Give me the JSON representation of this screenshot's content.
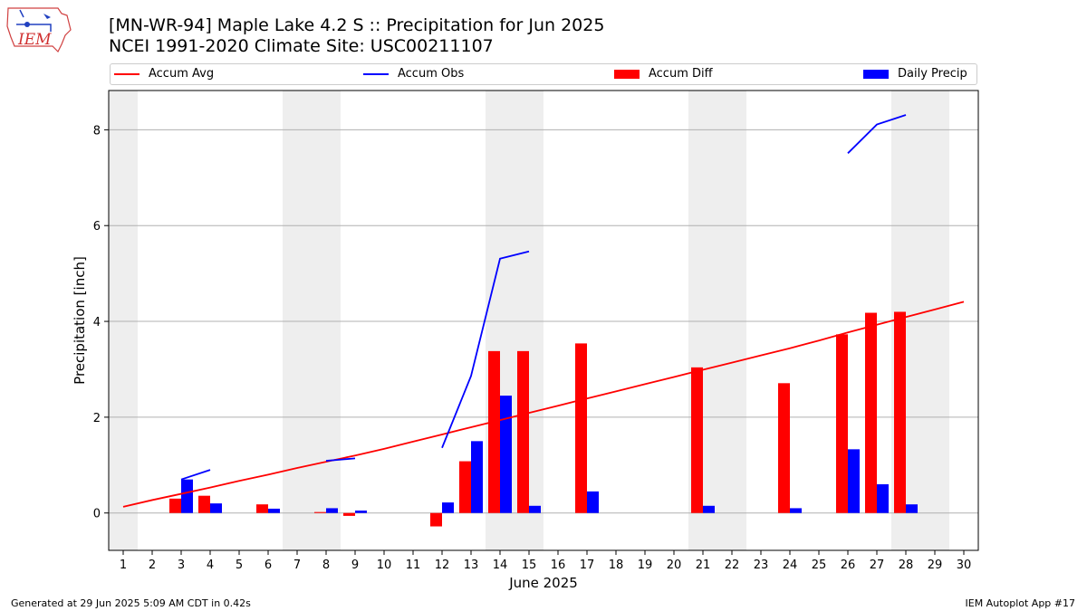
{
  "header": {
    "title": "[MN-WR-94] Maple Lake 4.2 S :: Precipitation for Jun 2025",
    "subtitle": "NCEI 1991-2020 Climate Site: USC00211107",
    "logo_text": "IEM"
  },
  "footer": {
    "generated": "Generated at 29 Jun 2025 5:09 AM CDT in 0.42s",
    "app": "IEM Autoplot App #17"
  },
  "legend": {
    "items": [
      {
        "label": "Accum Avg",
        "kind": "line",
        "color": "#ff0000"
      },
      {
        "label": "Accum Obs",
        "kind": "line",
        "color": "#0000ff"
      },
      {
        "label": "Accum Diff",
        "kind": "bar",
        "color": "#ff0000"
      },
      {
        "label": "Daily Precip",
        "kind": "bar",
        "color": "#0000ff"
      }
    ]
  },
  "chart_data": {
    "type": "bar",
    "xlabel": "June 2025",
    "ylabel": "Precipitation [inch]",
    "x": [
      1,
      2,
      3,
      4,
      5,
      6,
      7,
      8,
      9,
      10,
      11,
      12,
      13,
      14,
      15,
      16,
      17,
      18,
      19,
      20,
      21,
      22,
      23,
      24,
      25,
      26,
      27,
      28,
      29,
      30
    ],
    "xlim": [
      0.5,
      30.5
    ],
    "ylim": [
      -0.78,
      8.82
    ],
    "yticks": [
      0,
      2,
      4,
      6,
      8
    ],
    "grid": "y",
    "legend_position": "top",
    "weekend_shading": [
      [
        0.5,
        1.5
      ],
      [
        6.5,
        8.5
      ],
      [
        13.5,
        15.5
      ],
      [
        20.5,
        22.5
      ],
      [
        27.5,
        29.5
      ]
    ],
    "accum_avg": {
      "name": "Accum Avg",
      "color": "#ff0000",
      "x": [
        1,
        2,
        3,
        4,
        5,
        6,
        7,
        8,
        9,
        10,
        11,
        12,
        13,
        14,
        15,
        16,
        17,
        18,
        19,
        20,
        21,
        22,
        23,
        24,
        25,
        26,
        27,
        28,
        29,
        30
      ],
      "y": [
        0.13,
        0.27,
        0.4,
        0.53,
        0.67,
        0.8,
        0.94,
        1.07,
        1.2,
        1.34,
        1.49,
        1.64,
        1.79,
        1.94,
        2.09,
        2.24,
        2.39,
        2.54,
        2.69,
        2.84,
        2.99,
        3.14,
        3.29,
        3.44,
        3.6,
        3.77,
        3.93,
        4.09,
        4.25,
        4.41
      ]
    },
    "accum_obs": {
      "name": "Accum Obs",
      "color": "#0000ff",
      "segments": [
        {
          "x": [
            3,
            4
          ],
          "y": [
            0.7,
            0.9
          ]
        },
        {
          "x": [
            8,
            9
          ],
          "y": [
            1.09,
            1.14
          ]
        },
        {
          "x": [
            12,
            13,
            14,
            15
          ],
          "y": [
            1.36,
            2.86,
            5.31,
            5.46
          ]
        },
        {
          "x": [
            26,
            27,
            28
          ],
          "y": [
            7.51,
            8.11,
            8.31
          ]
        }
      ]
    },
    "accum_diff": {
      "name": "Accum Diff",
      "color": "#ff0000",
      "x": [
        3,
        4,
        6,
        8,
        9,
        12,
        13,
        14,
        15,
        17,
        21,
        24,
        26,
        27,
        28
      ],
      "values": [
        0.3,
        0.36,
        0.18,
        0.02,
        -0.06,
        -0.28,
        1.08,
        3.38,
        3.38,
        3.54,
        3.04,
        2.71,
        3.73,
        4.18,
        4.2
      ]
    },
    "daily_precip": {
      "name": "Daily Precip",
      "color": "#0000ff",
      "x": [
        3,
        4,
        6,
        8,
        9,
        12,
        13,
        14,
        15,
        17,
        21,
        24,
        26,
        27,
        28
      ],
      "values": [
        0.7,
        0.2,
        0.09,
        0.1,
        0.05,
        0.22,
        1.5,
        2.45,
        0.15,
        0.45,
        0.15,
        0.1,
        1.33,
        0.6,
        0.18
      ]
    }
  }
}
